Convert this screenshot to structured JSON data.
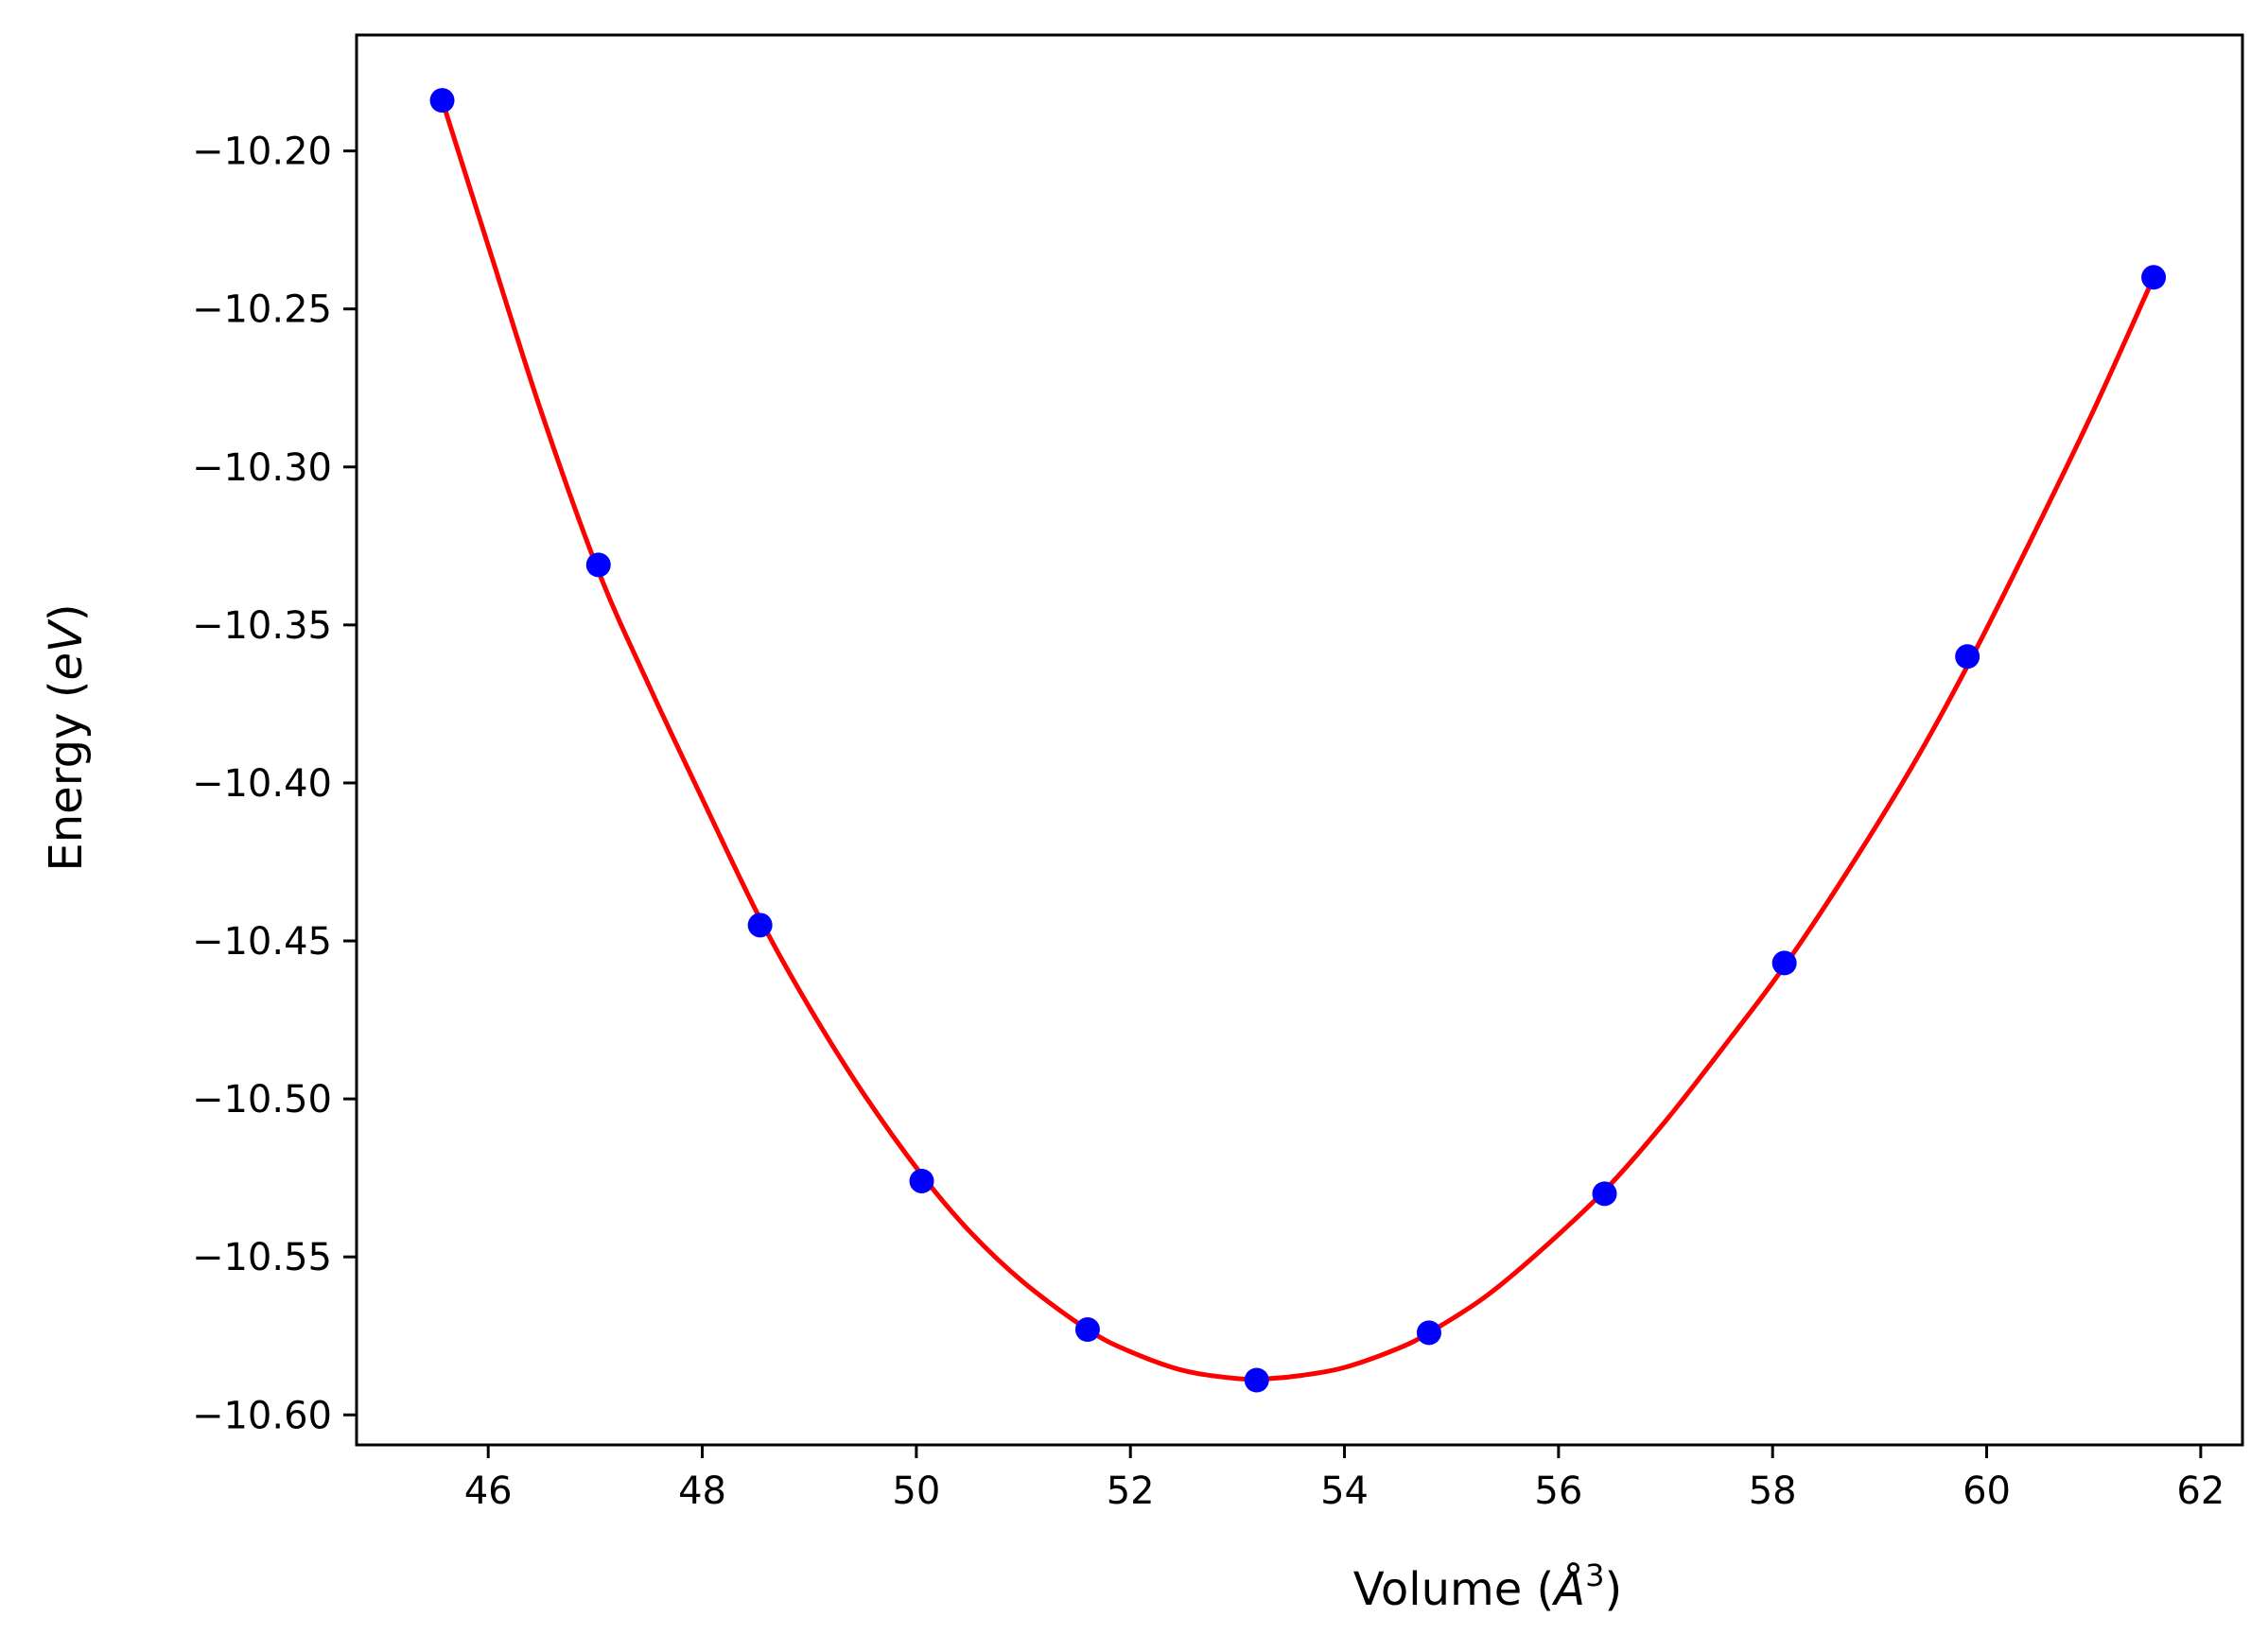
{
  "chart_data": {
    "type": "scatter",
    "title": "",
    "xlabel": {
      "prefix": "Volume (",
      "italic": "Å",
      "sup": "3",
      "suffix": ")"
    },
    "ylabel": {
      "prefix": "Energy (",
      "italic": "eV",
      "suffix": ")"
    },
    "xlim": [
      44.77,
      62.39
    ],
    "ylim": [
      -10.6095,
      -10.1633
    ],
    "xticks": [
      46,
      48,
      50,
      52,
      54,
      56,
      58,
      60,
      62
    ],
    "yticks": [
      -10.2,
      -10.25,
      -10.3,
      -10.35,
      -10.4,
      -10.45,
      -10.5,
      -10.55,
      -10.6
    ],
    "xtick_labels": [
      "46",
      "48",
      "50",
      "52",
      "54",
      "56",
      "58",
      "60",
      "62"
    ],
    "ytick_labels": [
      "−10.20",
      "−10.25",
      "−10.30",
      "−10.35",
      "−10.40",
      "−10.45",
      "−10.50",
      "−10.55",
      "−10.60"
    ],
    "grid": false,
    "legend": "none",
    "series": [
      {
        "name": "data",
        "kind": "points",
        "color": "#0000ff",
        "x": [
          45.57,
          47.03,
          48.54,
          50.05,
          51.6,
          53.18,
          54.79,
          56.43,
          58.11,
          59.82,
          61.56
        ],
        "y": [
          -10.184,
          -10.331,
          -10.445,
          -10.526,
          -10.573,
          -10.589,
          -10.574,
          -10.53,
          -10.457,
          -10.36,
          -10.24
        ]
      },
      {
        "name": "fit",
        "kind": "line",
        "color": "#ff0000",
        "x": [
          45.57,
          46.0,
          46.5,
          47.03,
          47.5,
          48.0,
          48.54,
          49.0,
          49.5,
          50.05,
          50.5,
          51.0,
          51.6,
          52.0,
          52.5,
          53.0,
          53.3,
          53.6,
          54.0,
          54.5,
          54.79,
          55.3,
          55.8,
          56.43,
          57.0,
          57.6,
          58.11,
          58.7,
          59.3,
          59.82,
          60.4,
          61.0,
          61.56
        ],
        "y": [
          -10.184,
          -10.23,
          -10.283,
          -10.333,
          -10.369,
          -10.405,
          -10.443,
          -10.471,
          -10.498,
          -10.524,
          -10.542,
          -10.558,
          -10.573,
          -10.58,
          -10.586,
          -10.5885,
          -10.5885,
          -10.5875,
          -10.585,
          -10.579,
          -10.574,
          -10.563,
          -10.549,
          -10.529,
          -10.507,
          -10.481,
          -10.458,
          -10.428,
          -10.395,
          -10.363,
          -10.324,
          -10.282,
          -10.24
        ]
      }
    ]
  }
}
